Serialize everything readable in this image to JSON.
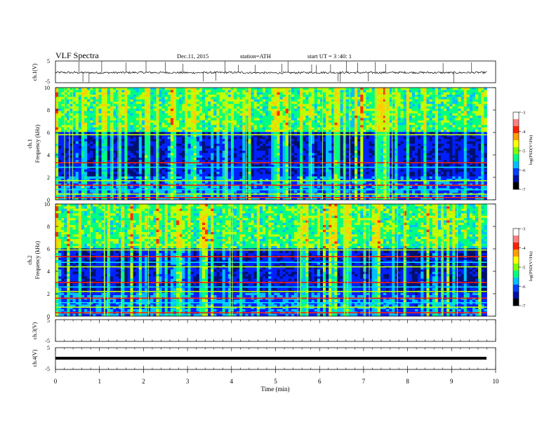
{
  "header": {
    "title": "VLF  Spectra",
    "date": "Dec.11, 2015",
    "station": "station=ATH",
    "start": "start  UT  =   3  :40: 1"
  },
  "colors": {
    "colormap": [
      "#000000",
      "#001070",
      "#0020ff",
      "#00c0ff",
      "#00ff80",
      "#c0ff00",
      "#ffd000",
      "#ff3000",
      "#ff9090",
      "#ffffff"
    ]
  },
  "chart_data": [
    {
      "type": "line",
      "title": "",
      "ylabel": "ch.1(V)",
      "ylim": [
        -5,
        5
      ],
      "yticks": [
        "5",
        "-5"
      ],
      "x": [
        0,
        1,
        2,
        3,
        4,
        5,
        6,
        7,
        8,
        9,
        9.8
      ],
      "values": [
        -0.3,
        -0.4,
        -0.3,
        -0.4,
        -0.3,
        -0.5,
        -0.3,
        -0.4,
        -0.3,
        -0.4,
        -0.3
      ],
      "note_xlim": [
        0,
        10
      ]
    },
    {
      "type": "heatmap",
      "ylabel": "ch.1\nFrequency (kHz)",
      "ylabel_lines": [
        "ch.1",
        "Frequency  (kHz)"
      ],
      "ylim": [
        0,
        10
      ],
      "yticks": [
        "0",
        "2",
        "4",
        "6",
        "8",
        "10"
      ],
      "xlim": [
        0,
        10
      ],
      "data_end_min": 9.8,
      "colorbar": {
        "label": "log(PSD(V²/Hz)",
        "range": [
          -7,
          -3
        ],
        "ticks": [
          "-3",
          "-4",
          "-5",
          "-6",
          "-7"
        ]
      },
      "bands_khz": [
        0.2,
        0.5,
        0.9,
        1.3,
        1.7,
        2.9,
        3.3,
        5.8
      ]
    },
    {
      "type": "heatmap",
      "ylabel": "ch.2\nFrequency (kHz)",
      "ylabel_lines": [
        "ch.2",
        "Frequency  (kHz)"
      ],
      "ylim": [
        0,
        10
      ],
      "yticks": [
        "0",
        "2",
        "4",
        "6",
        "8",
        "10"
      ],
      "xlim": [
        0,
        10
      ],
      "data_end_min": 9.8,
      "colorbar": {
        "label": "log(PSD(V²/Hz)",
        "range": [
          -7,
          -3
        ],
        "ticks": [
          "-3",
          "-4",
          "-5",
          "-6",
          "-7"
        ]
      },
      "bands_khz": [
        0.3,
        0.8,
        1.2,
        1.6,
        2.2,
        2.6,
        3.0,
        4.4,
        4.8,
        5.3,
        5.9
      ]
    },
    {
      "type": "line",
      "ylabel": "ch.3(V)",
      "ylim": [
        -5,
        5
      ],
      "yticks": [
        "5",
        "-5"
      ],
      "x": [],
      "values": []
    },
    {
      "type": "line",
      "ylabel": "ch.4(V)",
      "ylim": [
        -5,
        5
      ],
      "yticks": [
        "5",
        "-5"
      ],
      "x": [
        0,
        9.8
      ],
      "values": [
        0,
        0
      ],
      "xlabel": "Time  (min)",
      "xticks": [
        "0",
        "1",
        "2",
        "3",
        "4",
        "5",
        "6",
        "7",
        "8",
        "9",
        "10"
      ],
      "xlim": [
        0,
        10
      ]
    }
  ]
}
